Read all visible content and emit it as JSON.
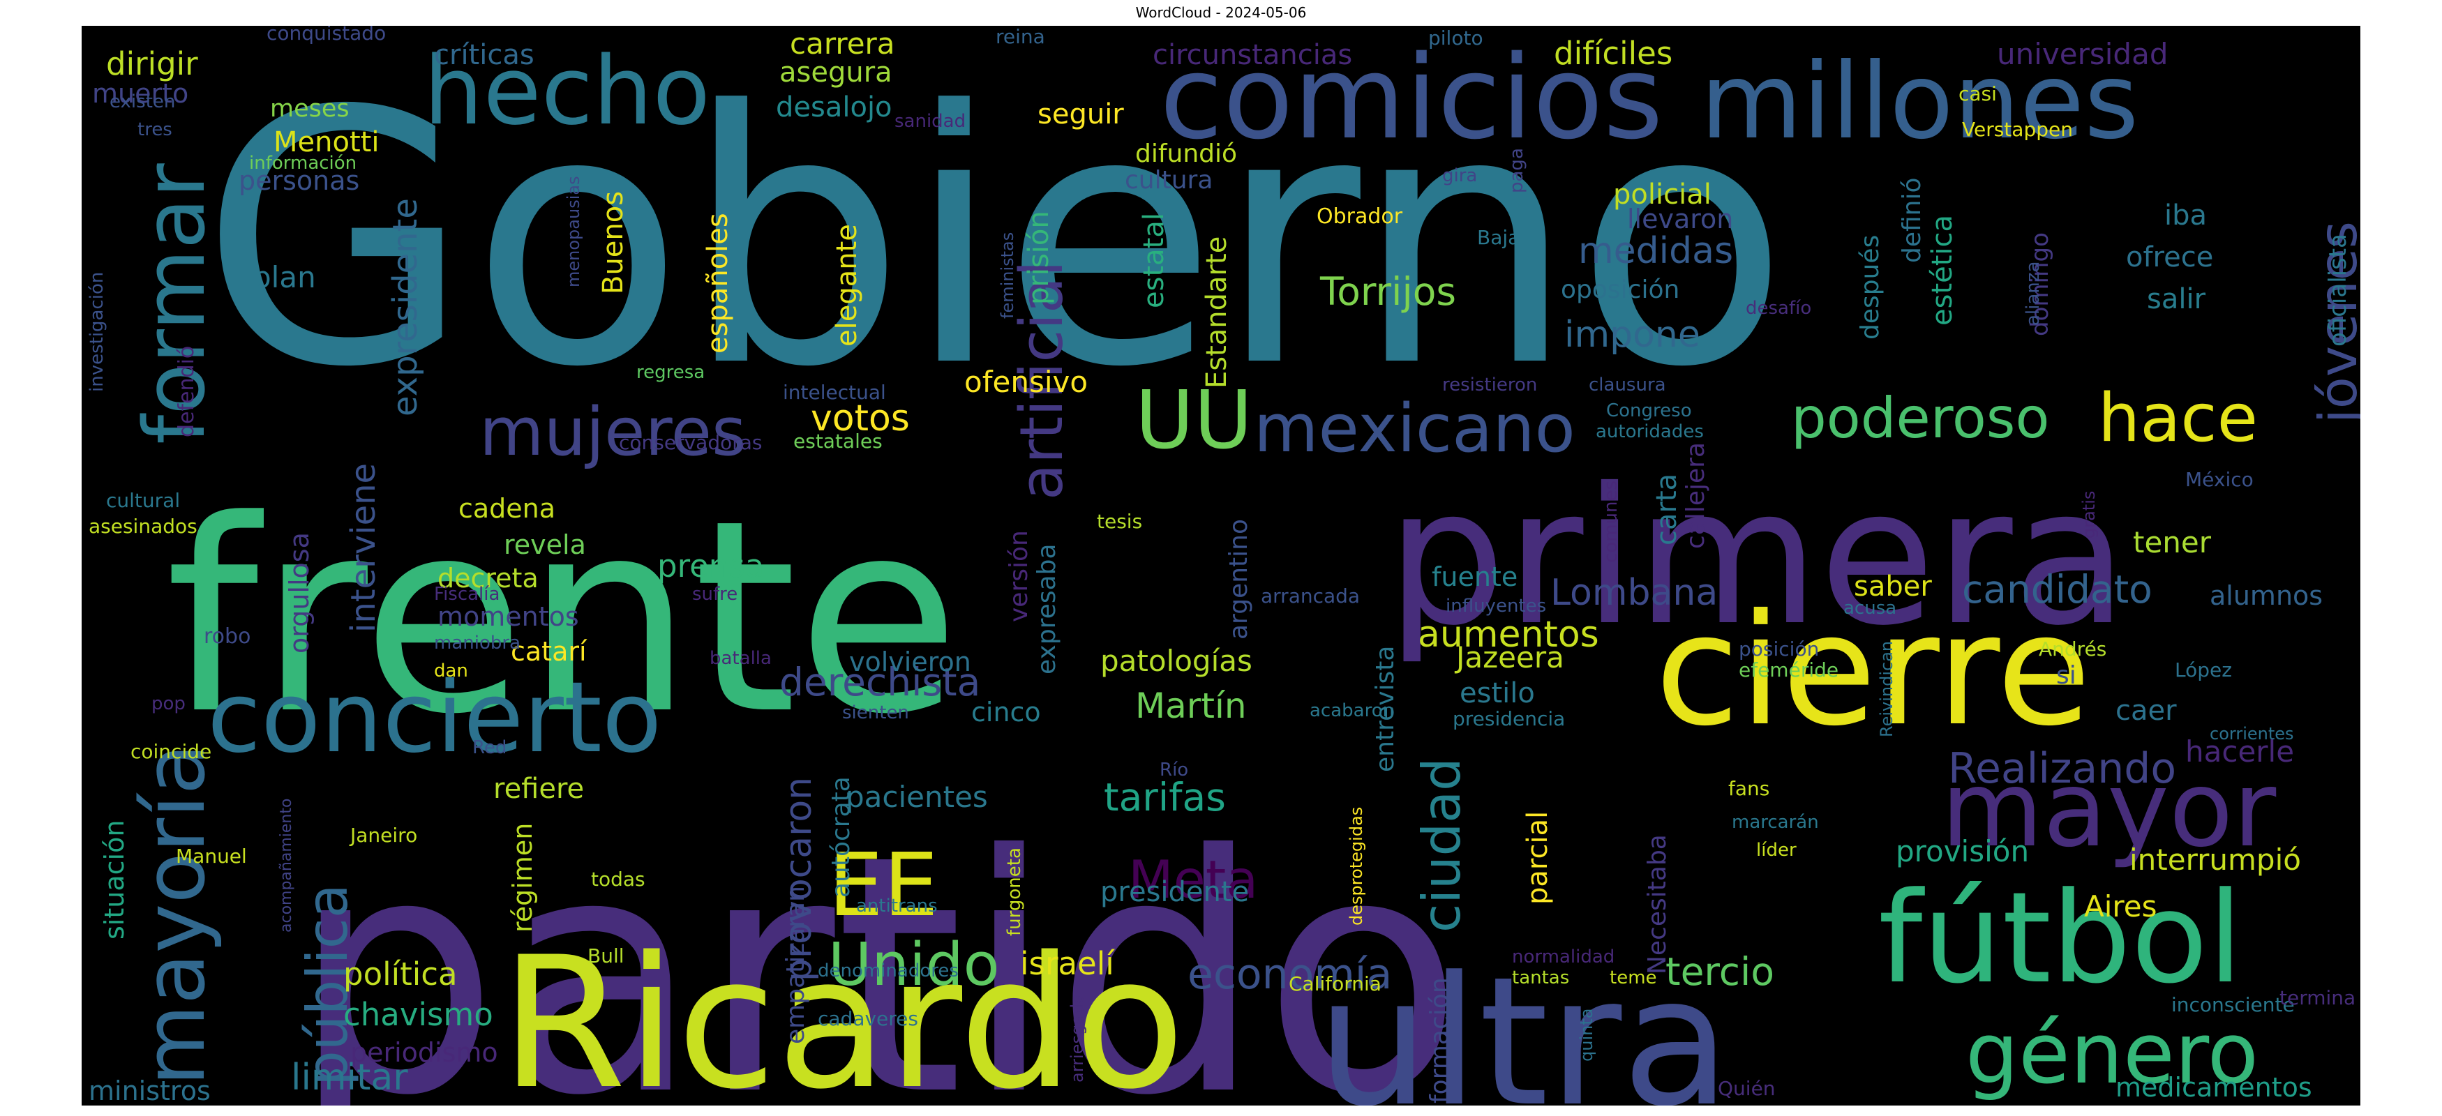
{
  "figure": {
    "title": "WordCloud - 2024-05-06"
  },
  "chart_data": {
    "type": "wordcloud",
    "title": "WordCloud - 2024-05-06",
    "background": "#000000",
    "colormap": "viridis",
    "words": [
      {
        "text": "Gobierno",
        "color": "#2a788e"
      },
      {
        "text": "frente",
        "color": "#35b779"
      },
      {
        "text": "partido",
        "color": "#472d7b"
      },
      {
        "text": "primera",
        "color": "#472d7b"
      },
      {
        "text": "Ricardo",
        "color": "#c8e020"
      },
      {
        "text": "ultra",
        "color": "#3e4a89"
      },
      {
        "text": "cierre",
        "color": "#e7e419"
      },
      {
        "text": "fútbol",
        "color": "#2fb47c"
      },
      {
        "text": "comicios",
        "color": "#3b528b"
      },
      {
        "text": "millones",
        "color": "#355f8d"
      },
      {
        "text": "mayor",
        "color": "#472d7b"
      },
      {
        "text": "concierto",
        "color": "#2c728e"
      },
      {
        "text": "mayoría",
        "color": "#31688e"
      },
      {
        "text": "formar",
        "color": "#2a788e"
      },
      {
        "text": "hecho",
        "color": "#2a788e"
      },
      {
        "text": "género",
        "color": "#35b779"
      },
      {
        "text": "EE",
        "color": "#dde318"
      },
      {
        "text": "UU",
        "color": "#6ece58"
      },
      {
        "text": "mexicano",
        "color": "#3b528b"
      },
      {
        "text": "mujeres",
        "color": "#414487"
      },
      {
        "text": "poderoso",
        "color": "#4ac16d"
      },
      {
        "text": "hace",
        "color": "#e5e419"
      },
      {
        "text": "pública",
        "color": "#31688e"
      },
      {
        "text": "artificial",
        "color": "#443983"
      },
      {
        "text": "jóvenes",
        "color": "#3e4a89"
      },
      {
        "text": "Unido",
        "color": "#5ec962"
      },
      {
        "text": "ciudad",
        "color": "#26828e"
      },
      {
        "text": "Meta",
        "color": "#440154"
      },
      {
        "text": "Realizando",
        "color": "#414487"
      },
      {
        "text": "Torrijos",
        "color": "#7fd34e"
      },
      {
        "text": "economía",
        "color": "#3b528b"
      },
      {
        "text": "tercio",
        "color": "#5ec962"
      },
      {
        "text": "derechista",
        "color": "#3e4a89"
      },
      {
        "text": "candidato",
        "color": "#33638d"
      },
      {
        "text": "Lombana",
        "color": "#3e4a89"
      },
      {
        "text": "aumentos",
        "color": "#c8e020"
      },
      {
        "text": "tarifas",
        "color": "#20a486"
      },
      {
        "text": "medidas",
        "color": "#365c8d"
      },
      {
        "text": "impone",
        "color": "#31688e"
      },
      {
        "text": "votos",
        "color": "#fde725"
      },
      {
        "text": "limitar",
        "color": "#2a788e"
      },
      {
        "text": "política",
        "color": "#c2df23"
      },
      {
        "text": "chavismo",
        "color": "#27ad81"
      },
      {
        "text": "interviene",
        "color": "#3b528b"
      },
      {
        "text": "expresidente",
        "color": "#31688e"
      },
      {
        "text": "provocaron",
        "color": "#3e4a89"
      },
      {
        "text": "Martín",
        "color": "#6ece58"
      },
      {
        "text": "prensa",
        "color": "#35b779"
      },
      {
        "text": "patologías",
        "color": "#b5de2b"
      },
      {
        "text": "pacientes",
        "color": "#2a788e"
      },
      {
        "text": "ofensivo",
        "color": "#fde725"
      },
      {
        "text": "israelí",
        "color": "#e5e419"
      },
      {
        "text": "provisión",
        "color": "#22a884"
      },
      {
        "text": "interrumpió",
        "color": "#c8e020"
      },
      {
        "text": "hacerle",
        "color": "#482878"
      },
      {
        "text": "medicamentos",
        "color": "#1f9e89"
      },
      {
        "text": "alumnos",
        "color": "#33638d"
      },
      {
        "text": "tener",
        "color": "#aadc32"
      },
      {
        "text": "saber",
        "color": "#dde318"
      },
      {
        "text": "caer",
        "color": "#2c728e"
      },
      {
        "text": "presidente",
        "color": "#2a788e"
      },
      {
        "text": "carta",
        "color": "#29798e"
      },
      {
        "text": "parcial",
        "color": "#fde725"
      },
      {
        "text": "estilo",
        "color": "#2a788e"
      },
      {
        "text": "Jazeera",
        "color": "#c2df23"
      },
      {
        "text": "fuente",
        "color": "#26828e"
      },
      {
        "text": "cinco",
        "color": "#287d8e"
      },
      {
        "text": "críticas",
        "color": "#31688e"
      },
      {
        "text": "carrera",
        "color": "#c8e020"
      },
      {
        "text": "asegura",
        "color": "#9fda3a"
      },
      {
        "text": "desalojo",
        "color": "#23898e"
      },
      {
        "text": "seguir",
        "color": "#fde725"
      },
      {
        "text": "difíciles",
        "color": "#c2df23"
      },
      {
        "text": "circunstancias",
        "color": "#482878"
      },
      {
        "text": "universidad",
        "color": "#482878"
      },
      {
        "text": "dirigir",
        "color": "#bddf26"
      },
      {
        "text": "muerto",
        "color": "#414487"
      },
      {
        "text": "meses",
        "color": "#86d549"
      },
      {
        "text": "Menotti",
        "color": "#dde318"
      },
      {
        "text": "personas",
        "color": "#3b528b"
      },
      {
        "text": "plan",
        "color": "#2a788e"
      },
      {
        "text": "españoles",
        "color": "#fde725"
      },
      {
        "text": "elegante",
        "color": "#e5e419"
      },
      {
        "text": "prisión",
        "color": "#35b779"
      },
      {
        "text": "estatal",
        "color": "#29af7f"
      },
      {
        "text": "Estandarte",
        "color": "#b5de2b"
      },
      {
        "text": "difundió",
        "color": "#bddf26"
      },
      {
        "text": "cultura",
        "color": "#3b528b"
      },
      {
        "text": "policial",
        "color": "#c2df23"
      },
      {
        "text": "llevaron",
        "color": "#3e4a89"
      },
      {
        "text": "oposición",
        "color": "#2c728e"
      },
      {
        "text": "después",
        "color": "#287d8e"
      },
      {
        "text": "definió",
        "color": "#2c728e"
      },
      {
        "text": "estética",
        "color": "#22a884"
      },
      {
        "text": "domingo",
        "color": "#443983"
      },
      {
        "text": "iba",
        "color": "#2a788e"
      },
      {
        "text": "ofrece",
        "color": "#2c728e"
      },
      {
        "text": "salir",
        "color": "#287d8e"
      },
      {
        "text": "oficialista",
        "color": "#2a788e"
      },
      {
        "text": "cadena",
        "color": "#c8e020"
      },
      {
        "text": "revela",
        "color": "#6ece58"
      },
      {
        "text": "decreta",
        "color": "#b5de2b"
      },
      {
        "text": "momentos",
        "color": "#414487"
      },
      {
        "text": "catarí",
        "color": "#fde725"
      },
      {
        "text": "volvieron",
        "color": "#2c728e"
      },
      {
        "text": "refiere",
        "color": "#b5de2b"
      },
      {
        "text": "régimen",
        "color": "#bddf26"
      },
      {
        "text": "periodismo",
        "color": "#482878"
      },
      {
        "text": "ministros",
        "color": "#2c728e"
      },
      {
        "text": "situación",
        "color": "#22a884"
      },
      {
        "text": "orgullosa",
        "color": "#443983"
      },
      {
        "text": "versión",
        "color": "#482878"
      },
      {
        "text": "expresaba",
        "color": "#2c728e"
      },
      {
        "text": "argentino",
        "color": "#3b528b"
      },
      {
        "text": "empatizaran",
        "color": "#3e4a89"
      },
      {
        "text": "autócrata",
        "color": "#2a788e"
      },
      {
        "text": "entrevista",
        "color": "#2a788e"
      },
      {
        "text": "formación",
        "color": "#3e4a89"
      },
      {
        "text": "Necesitaba",
        "color": "#443983"
      },
      {
        "text": "callejera",
        "color": "#472d7b"
      },
      {
        "text": "Aires",
        "color": "#e5e419"
      },
      {
        "text": "Buenos",
        "color": "#e5e419"
      },
      {
        "text": "Obrador",
        "color": "#fde725"
      },
      {
        "text": "Verstappen",
        "color": "#e5e419"
      },
      {
        "text": "conquistado",
        "color": "#3e4a89"
      },
      {
        "text": "reina",
        "color": "#33638d"
      },
      {
        "text": "piloto",
        "color": "#31688e"
      },
      {
        "text": "existen",
        "color": "#3b528b"
      },
      {
        "text": "tres",
        "color": "#3b528b"
      },
      {
        "text": "información",
        "color": "#6ece58"
      },
      {
        "text": "sanidad",
        "color": "#482878"
      },
      {
        "text": "casi",
        "color": "#c8e020"
      },
      {
        "text": "gira",
        "color": "#414487"
      },
      {
        "text": "paga",
        "color": "#414487"
      },
      {
        "text": "Baja",
        "color": "#2a788e"
      },
      {
        "text": "alianza",
        "color": "#3b528b"
      },
      {
        "text": "desafío",
        "color": "#472d7b"
      },
      {
        "text": "menopausias",
        "color": "#3e4a89"
      },
      {
        "text": "feministas",
        "color": "#3b528b"
      },
      {
        "text": "investigación",
        "color": "#3b528b"
      },
      {
        "text": "defendió",
        "color": "#482878"
      },
      {
        "text": "regresa",
        "color": "#5ec962"
      },
      {
        "text": "intelectual",
        "color": "#3b528b"
      },
      {
        "text": "resistieron",
        "color": "#443983"
      },
      {
        "text": "clausura",
        "color": "#3b528b"
      },
      {
        "text": "Congreso",
        "color": "#2c728e"
      },
      {
        "text": "autoridades",
        "color": "#2a788e"
      },
      {
        "text": "conservadoras",
        "color": "#443983"
      },
      {
        "text": "estatales",
        "color": "#6ece58"
      },
      {
        "text": "cultural",
        "color": "#2a788e"
      },
      {
        "text": "asesinados",
        "color": "#c2df23"
      },
      {
        "text": "México",
        "color": "#3b528b"
      },
      {
        "text": "tesis",
        "color": "#b5de2b"
      },
      {
        "text": "comunes",
        "color": "#482878"
      },
      {
        "text": "gratis",
        "color": "#482878"
      },
      {
        "text": "Fiscalía",
        "color": "#472d7b"
      },
      {
        "text": "sufre",
        "color": "#482878"
      },
      {
        "text": "maniobra",
        "color": "#3b528b"
      },
      {
        "text": "dan",
        "color": "#e5e419"
      },
      {
        "text": "robo",
        "color": "#3e4a89"
      },
      {
        "text": "arrancada",
        "color": "#3b528b"
      },
      {
        "text": "influyentes",
        "color": "#3b528b"
      },
      {
        "text": "acusa",
        "color": "#2c728e"
      },
      {
        "text": "posición",
        "color": "#3b528b"
      },
      {
        "text": "efeméride",
        "color": "#6ece58"
      },
      {
        "text": "Andrés",
        "color": "#b5de2b"
      },
      {
        "text": "si",
        "color": "#3b528b"
      },
      {
        "text": "López",
        "color": "#2c728e"
      },
      {
        "text": "pop",
        "color": "#472d7b"
      },
      {
        "text": "batalla",
        "color": "#482878"
      },
      {
        "text": "sienten",
        "color": "#3b528b"
      },
      {
        "text": "acabaron",
        "color": "#2a788e"
      },
      {
        "text": "presidencia",
        "color": "#2a788e"
      },
      {
        "text": "coincide",
        "color": "#c2df23"
      },
      {
        "text": "Red",
        "color": "#3b528b"
      },
      {
        "text": "Reivindican",
        "color": "#2c728e"
      },
      {
        "text": "corrientes",
        "color": "#2c728e"
      },
      {
        "text": "Río",
        "color": "#3e4a89"
      },
      {
        "text": "fans",
        "color": "#c8e020"
      },
      {
        "text": "marcarán",
        "color": "#2a788e"
      },
      {
        "text": "líder",
        "color": "#c8e020"
      },
      {
        "text": "acompañamiento",
        "color": "#414487"
      },
      {
        "text": "Manuel",
        "color": "#c8e020"
      },
      {
        "text": "Janeiro",
        "color": "#c2df23"
      },
      {
        "text": "todas",
        "color": "#b5de2b"
      },
      {
        "text": "desprotegidas",
        "color": "#fde725"
      },
      {
        "text": "furgoneta",
        "color": "#c8e020"
      },
      {
        "text": "antitrans",
        "color": "#2a788e"
      },
      {
        "text": "Bull",
        "color": "#b5de2b"
      },
      {
        "text": "denominadores",
        "color": "#2c728e"
      },
      {
        "text": "arriesgada",
        "color": "#472d7b"
      },
      {
        "text": "cadaveres",
        "color": "#2c728e"
      },
      {
        "text": "California",
        "color": "#c8e020"
      },
      {
        "text": "normalidad",
        "color": "#482878"
      },
      {
        "text": "tantas",
        "color": "#b5de2b"
      },
      {
        "text": "teme",
        "color": "#c8e020"
      },
      {
        "text": "quinta",
        "color": "#2c728e"
      },
      {
        "text": "inconsciente",
        "color": "#2a788e"
      },
      {
        "text": "termina",
        "color": "#472d7b"
      },
      {
        "text": "Quién",
        "color": "#472d7b"
      }
    ]
  }
}
